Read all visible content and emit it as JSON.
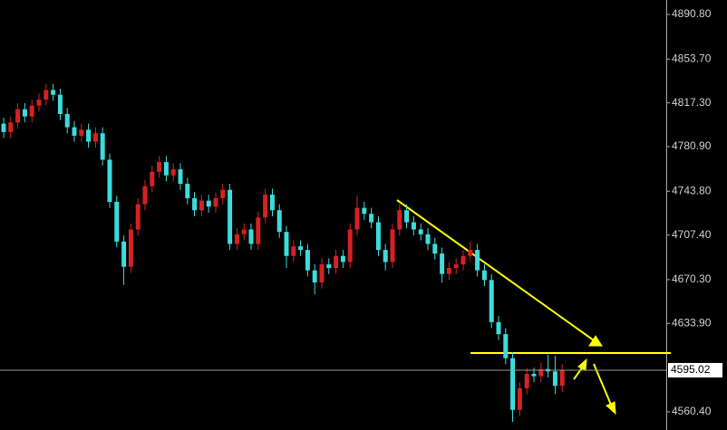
{
  "chart_data": {
    "type": "candlestick",
    "open": [
      4800,
      4793,
      4801,
      4812,
      4806,
      4815,
      4820,
      4828,
      4824,
      4808,
      4797,
      4790,
      4795,
      4785,
      4792,
      4770,
      4735,
      4702,
      4681,
      4712,
      4733,
      4748,
      4760,
      4768,
      4757,
      4762,
      4750,
      4738,
      4728,
      4736,
      4731,
      4738,
      4745,
      4700,
      4708,
      4712,
      4700,
      4722,
      4741,
      4728,
      4710,
      4690,
      4698,
      4695,
      4678,
      4668,
      4683,
      4680,
      4690,
      4685,
      4712,
      4730,
      4725,
      4718,
      4695,
      4685,
      4712,
      4728,
      4718,
      4712,
      4708,
      4700,
      4692,
      4675,
      4680,
      4683,
      4690,
      4695,
      4678,
      4670,
      4635,
      4625,
      4605,
      4562,
      4580,
      4592,
      4590,
      4596,
      4594,
      4582
    ],
    "high": [
      4805,
      4806,
      4817,
      4817,
      4820,
      4825,
      4833,
      4833,
      4829,
      4813,
      4802,
      4800,
      4800,
      4797,
      4797,
      4775,
      4740,
      4707,
      4717,
      4738,
      4753,
      4765,
      4773,
      4773,
      4767,
      4767,
      4755,
      4743,
      4741,
      4741,
      4743,
      4750,
      4750,
      4713,
      4717,
      4717,
      4727,
      4746,
      4746,
      4733,
      4715,
      4703,
      4703,
      4700,
      4683,
      4688,
      4688,
      4695,
      4695,
      4717,
      4740,
      4735,
      4730,
      4723,
      4700,
      4717,
      4733,
      4733,
      4723,
      4717,
      4713,
      4705,
      4697,
      4685,
      4688,
      4695,
      4702,
      4700,
      4683,
      4675,
      4640,
      4630,
      4610,
      4585,
      4597,
      4597,
      4601,
      4608,
      4607,
      4600
    ],
    "low": [
      4788,
      4788,
      4796,
      4801,
      4801,
      4810,
      4815,
      4819,
      4803,
      4792,
      4785,
      4785,
      4780,
      4780,
      4765,
      4730,
      4697,
      4666,
      4676,
      4707,
      4728,
      4743,
      4755,
      4752,
      4752,
      4745,
      4733,
      4723,
      4723,
      4726,
      4726,
      4733,
      4695,
      4695,
      4703,
      4695,
      4695,
      4717,
      4723,
      4705,
      4680,
      4685,
      4690,
      4673,
      4658,
      4663,
      4675,
      4675,
      4680,
      4680,
      4707,
      4720,
      4713,
      4690,
      4678,
      4680,
      4707,
      4713,
      4707,
      4703,
      4695,
      4687,
      4668,
      4670,
      4675,
      4678,
      4685,
      4673,
      4665,
      4630,
      4620,
      4600,
      4552,
      4557,
      4575,
      4585,
      4585,
      4589,
      4575,
      4577
    ],
    "close": [
      4793,
      4801,
      4812,
      4806,
      4815,
      4820,
      4828,
      4824,
      4808,
      4797,
      4790,
      4795,
      4785,
      4792,
      4770,
      4735,
      4702,
      4681,
      4712,
      4733,
      4748,
      4760,
      4768,
      4757,
      4762,
      4750,
      4738,
      4728,
      4736,
      4731,
      4738,
      4745,
      4700,
      4708,
      4712,
      4700,
      4722,
      4741,
      4728,
      4710,
      4690,
      4698,
      4695,
      4678,
      4668,
      4683,
      4680,
      4690,
      4685,
      4712,
      4730,
      4725,
      4718,
      4695,
      4685,
      4712,
      4728,
      4718,
      4712,
      4708,
      4700,
      4692,
      4675,
      4680,
      4683,
      4690,
      4695,
      4678,
      4670,
      4635,
      4625,
      4605,
      4562,
      4580,
      4592,
      4590,
      4596,
      4594,
      4582,
      4595.02
    ],
    "up_color": "#d42222",
    "down_color": "#3ddcdc",
    "last_price": 4595.02,
    "ylim": [
      4545.3,
      4902.8
    ],
    "yticks": [
      {
        "value": 4890.8,
        "label": "4890.80"
      },
      {
        "value": 4853.7,
        "label": "4853.70"
      },
      {
        "value": 4817.3,
        "label": "4817.30"
      },
      {
        "value": 4780.9,
        "label": "4780.90"
      },
      {
        "value": 4743.8,
        "label": "4743.80"
      },
      {
        "value": 4707.4,
        "label": "4707.40"
      },
      {
        "value": 4670.3,
        "label": "4670.30"
      },
      {
        "value": 4633.9,
        "label": "4633.90"
      },
      {
        "value": 4560.4,
        "label": "4560.40"
      }
    ]
  }
}
